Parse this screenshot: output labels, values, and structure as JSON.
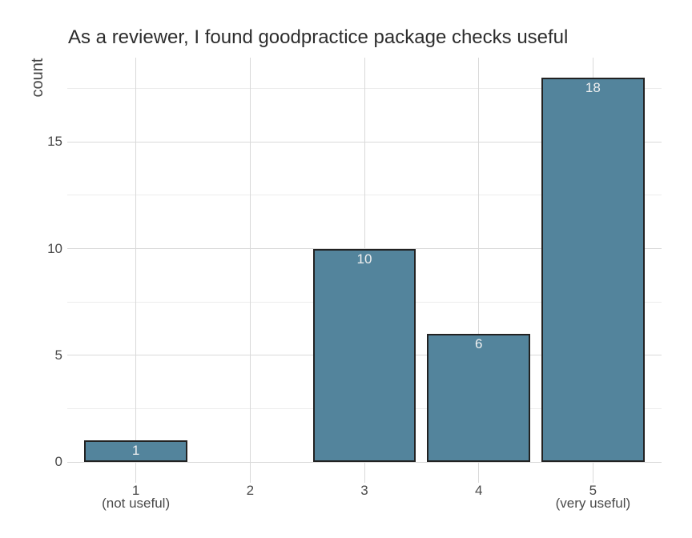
{
  "chart_data": {
    "type": "bar",
    "title": "As a reviewer, I found goodpractice package checks useful",
    "xlabel": "",
    "ylabel": "count",
    "categories": [
      "1",
      "2",
      "3",
      "4",
      "5"
    ],
    "category_sublabels": [
      "(not useful)",
      "",
      "",
      "",
      "(very useful)"
    ],
    "values": [
      1,
      0,
      10,
      6,
      18
    ],
    "bar_value_labels": [
      "1",
      "",
      "10",
      "6",
      "18"
    ],
    "yticks": [
      0,
      5,
      10,
      15
    ],
    "yticks_minor": [
      2.5,
      7.5,
      12.5,
      17.5
    ],
    "ylim": [
      -0.95,
      18.95
    ],
    "grid": "horizontal major+minor, vertical major at category centers",
    "legend": "none",
    "colors": {
      "bar_fill": "#53849c",
      "bar_border": "#222222",
      "bar_label": "#f0f0f0",
      "grid_major": "#d9d9d9",
      "grid_minor": "#ececec",
      "title_text": "#2d2d2d",
      "tick_text": "#4a4a4a",
      "background": "#ffffff"
    }
  }
}
